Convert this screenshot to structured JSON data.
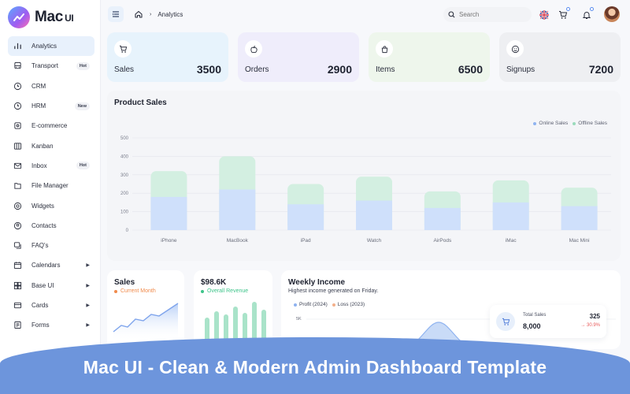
{
  "brand": {
    "name": "Mac",
    "suffix": "UI"
  },
  "sidebar": {
    "items": [
      {
        "label": "Analytics",
        "icon": "bar-chart-icon",
        "active": true
      },
      {
        "label": "Transport",
        "icon": "bus-icon",
        "badge": "Hot"
      },
      {
        "label": "CRM",
        "icon": "clock-icon"
      },
      {
        "label": "HRM",
        "icon": "clock-icon",
        "badge": "New"
      },
      {
        "label": "E-commerce",
        "icon": "shop-icon"
      },
      {
        "label": "Kanban",
        "icon": "columns-icon"
      },
      {
        "label": "Inbox",
        "icon": "mail-icon",
        "badge": "Hot"
      },
      {
        "label": "File Manager",
        "icon": "file-icon"
      },
      {
        "label": "Widgets",
        "icon": "widget-icon"
      },
      {
        "label": "Contacts",
        "icon": "contact-icon"
      },
      {
        "label": "FAQ's",
        "icon": "faq-icon"
      },
      {
        "label": "Calendars",
        "icon": "calendar-icon",
        "caret": true
      },
      {
        "label": "Base UI",
        "icon": "grid-icon",
        "caret": true
      },
      {
        "label": "Cards",
        "icon": "card-icon",
        "caret": true
      },
      {
        "label": "Forms",
        "icon": "form-icon",
        "caret": true
      }
    ]
  },
  "header": {
    "breadcrumb": "Analytics",
    "search_placeholder": "Search"
  },
  "stats": [
    {
      "label": "Sales",
      "value": "3500",
      "icon": "cart-icon",
      "color": "#e7f3fc"
    },
    {
      "label": "Orders",
      "value": "2900",
      "icon": "apple-icon",
      "color": "#efedfb"
    },
    {
      "label": "Items",
      "value": "6500",
      "icon": "bag-icon",
      "color": "#eef6ec"
    },
    {
      "label": "Signups",
      "value": "7200",
      "icon": "smile-icon",
      "color": "#eeeff2"
    }
  ],
  "chart_data": {
    "type": "bar",
    "title": "Product Sales",
    "categories": [
      "iPhone",
      "MacBook",
      "iPad",
      "Watch",
      "AirPods",
      "iMac",
      "Mac Mini"
    ],
    "yticks": [
      0,
      100,
      200,
      300,
      400,
      500
    ],
    "ylim": [
      0,
      500
    ],
    "stacked": true,
    "series": [
      {
        "name": "Online Sales",
        "values": [
          180,
          220,
          140,
          160,
          120,
          150,
          130
        ],
        "color": "#cfe0fb"
      },
      {
        "name": "Offline Sales",
        "values": [
          140,
          180,
          110,
          130,
          90,
          120,
          100
        ],
        "color": "#d3efe1"
      }
    ],
    "legend": "top-right"
  },
  "bottom": {
    "sales": {
      "title": "Sales",
      "sub": "Current Month",
      "sub_color": "#f08a4b"
    },
    "revenue": {
      "title": "$98.6K",
      "sub": "Overall Revenue",
      "sub_color": "#3ec48a"
    },
    "weekly": {
      "title": "Weekly Income",
      "sub": "Highest income generated on Friday.",
      "legend": [
        {
          "name": "Profit (2024)",
          "color": "#8fb3f0"
        },
        {
          "name": "Loss (2023)",
          "color": "#f3b08a"
        }
      ],
      "ytick": "5K"
    },
    "total_sales": {
      "label": "Total Sales",
      "value": "8,000",
      "count": "325",
      "change": "30.9%"
    }
  },
  "banner": "Mac UI - Clean & Modern Admin Dashboard Template"
}
